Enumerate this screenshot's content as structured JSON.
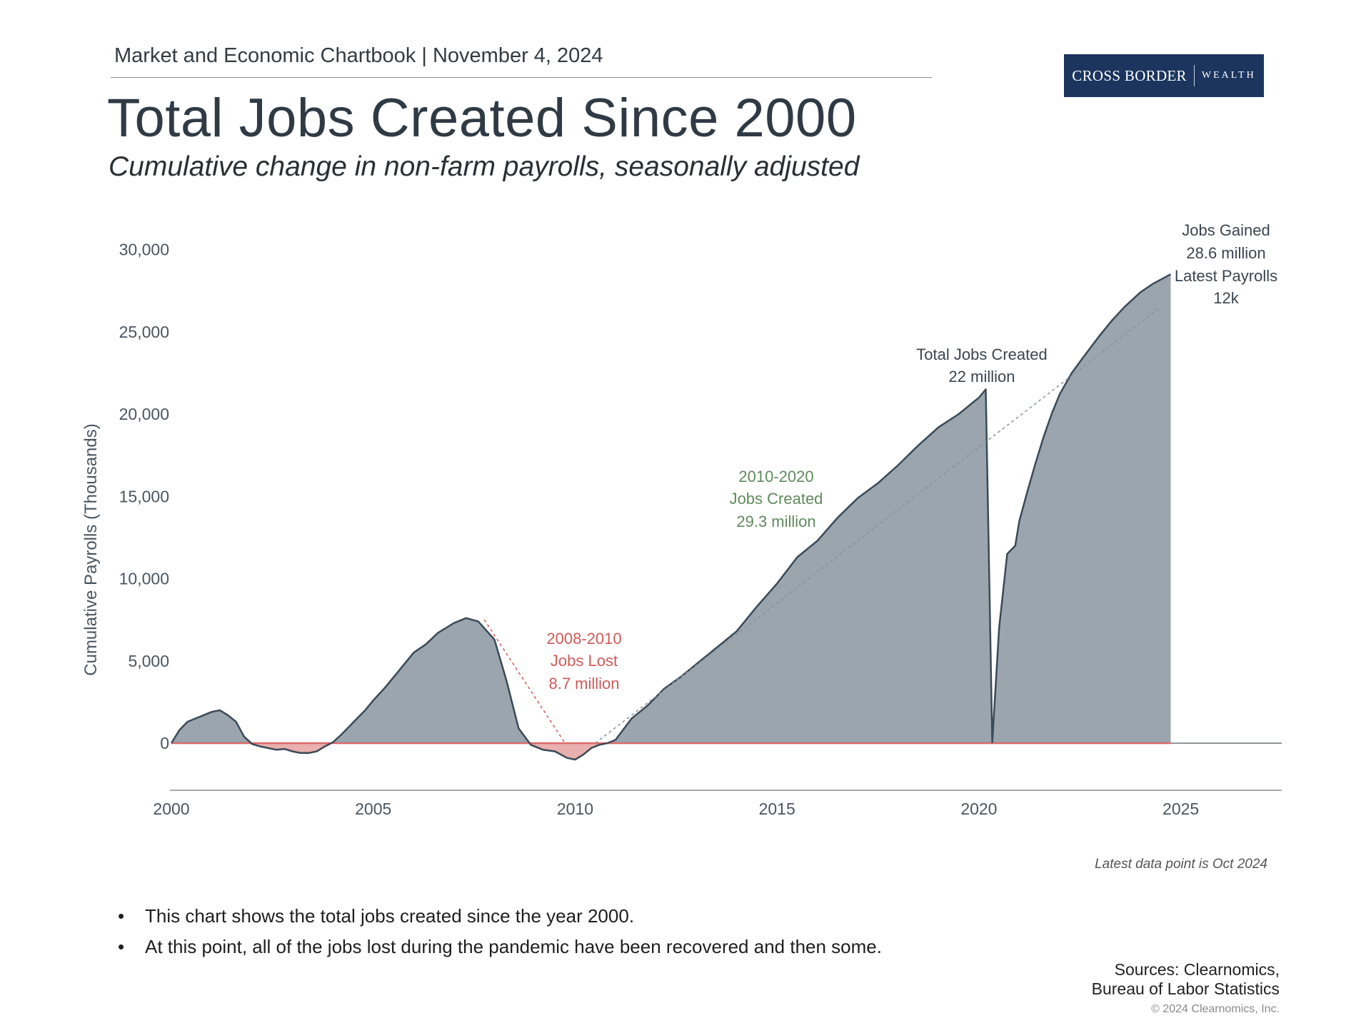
{
  "header": {
    "chartbook": "Market and Economic Chartbook | November 4, 2024",
    "title": "Total Jobs Created Since 2000",
    "subtitle": "Cumulative change in non-farm payrolls, seasonally adjusted"
  },
  "logo": {
    "main": "CROSS BORDER",
    "sub": "WEALTH",
    "bg": "#1b355f"
  },
  "chart_data": {
    "type": "area",
    "title": "Total Jobs Created Since 2000",
    "ylabel": "Cumulative Payrolls (Thousands)",
    "xlabel": "",
    "xlim": [
      2000,
      2027.5
    ],
    "ylim": [
      -2800,
      30000
    ],
    "x_ticks": [
      2000,
      2005,
      2010,
      2015,
      2020,
      2025
    ],
    "y_ticks": [
      0,
      5000,
      10000,
      15000,
      20000,
      25000,
      30000
    ],
    "y_tick_labels": [
      "0",
      "5,000",
      "10,000",
      "15,000",
      "20,000",
      "25,000",
      "30,000"
    ],
    "colors": {
      "positive": "#9aa5ae",
      "negative": "#e8b0ae",
      "line": "#3b4a57",
      "zero": "#d96b6b",
      "green": "#5f8a5c",
      "red": "#cf5a57"
    },
    "series": [
      {
        "name": "Cumulative payrolls",
        "x": [
          2000.0,
          2000.2,
          2000.4,
          2000.6,
          2000.8,
          2001.0,
          2001.2,
          2001.4,
          2001.6,
          2001.8,
          2002.0,
          2002.2,
          2002.4,
          2002.6,
          2002.8,
          2003.0,
          2003.2,
          2003.4,
          2003.6,
          2003.8,
          2004.0,
          2004.2,
          2004.4,
          2004.6,
          2004.8,
          2005.0,
          2005.3,
          2005.6,
          2006.0,
          2006.3,
          2006.6,
          2007.0,
          2007.3,
          2007.6,
          2008.0,
          2008.3,
          2008.6,
          2008.9,
          2009.2,
          2009.5,
          2009.8,
          2010.0,
          2010.2,
          2010.4,
          2010.6,
          2010.8,
          2011.0,
          2011.4,
          2011.8,
          2012.2,
          2012.6,
          2013.0,
          2013.5,
          2014.0,
          2014.5,
          2015.0,
          2015.5,
          2016.0,
          2016.5,
          2017.0,
          2017.5,
          2018.0,
          2018.5,
          2019.0,
          2019.5,
          2020.0,
          2020.17,
          2020.25,
          2020.33,
          2020.5,
          2020.7,
          2020.9,
          2021.0,
          2021.2,
          2021.4,
          2021.6,
          2021.8,
          2022.0,
          2022.3,
          2022.6,
          2023.0,
          2023.3,
          2023.6,
          2024.0,
          2024.3,
          2024.6,
          2024.75
        ],
        "values": [
          0,
          800,
          1300,
          1500,
          1700,
          1900,
          2000,
          1700,
          1300,
          400,
          -50,
          -200,
          -300,
          -400,
          -350,
          -500,
          -600,
          -600,
          -500,
          -200,
          50,
          500,
          1000,
          1500,
          2000,
          2600,
          3400,
          4300,
          5500,
          6000,
          6700,
          7300,
          7600,
          7400,
          6300,
          3800,
          900,
          -100,
          -400,
          -500,
          -900,
          -1000,
          -700,
          -300,
          -100,
          0,
          200,
          1500,
          2300,
          3300,
          4000,
          4800,
          5800,
          6800,
          8300,
          9700,
          11300,
          12300,
          13700,
          14900,
          15800,
          16900,
          18100,
          19200,
          20000,
          21000,
          21500,
          11000,
          50,
          7000,
          11500,
          12000,
          13500,
          15300,
          17000,
          18600,
          20000,
          21200,
          22500,
          23500,
          24800,
          25700,
          26500,
          27400,
          27900,
          28300,
          28500
        ]
      }
    ],
    "annotations": [
      {
        "text": "2008-2010",
        "color": "red"
      },
      {
        "text": "Jobs Lost",
        "color": "red"
      },
      {
        "text": "8.7 million",
        "color": "red"
      },
      {
        "text": "2010-2020",
        "color": "green"
      },
      {
        "text": "Jobs Created",
        "color": "green"
      },
      {
        "text": "29.3 million",
        "color": "green"
      },
      {
        "text": "Total Jobs Created",
        "color": "dark"
      },
      {
        "text": "22 million",
        "color": "dark"
      },
      {
        "text": "Jobs Gained",
        "color": "dark"
      },
      {
        "text": "28.6 million",
        "color": "dark"
      },
      {
        "text": "Latest Payrolls",
        "color": "dark"
      },
      {
        "text": "12k",
        "color": "dark"
      }
    ],
    "trend_lines": [
      {
        "name": "recession-trend",
        "x": [
          2007.75,
          2009.75
        ],
        "y": [
          7500,
          0
        ],
        "color": "red"
      },
      {
        "name": "expansion-trend",
        "x": [
          2010.5,
          2024.5
        ],
        "y": [
          0,
          26500
        ],
        "color": "gray"
      }
    ]
  },
  "note": "Latest data point is Oct 2024",
  "bullets": [
    "This chart shows the total jobs created since the year 2000.",
    "At this point, all of the jobs lost during the pandemic have been recovered and then some."
  ],
  "sources": {
    "line1": "Sources: Clearnomics,",
    "line2": "Bureau of Labor Statistics"
  },
  "copyright": "© 2024 Clearnomics, Inc."
}
